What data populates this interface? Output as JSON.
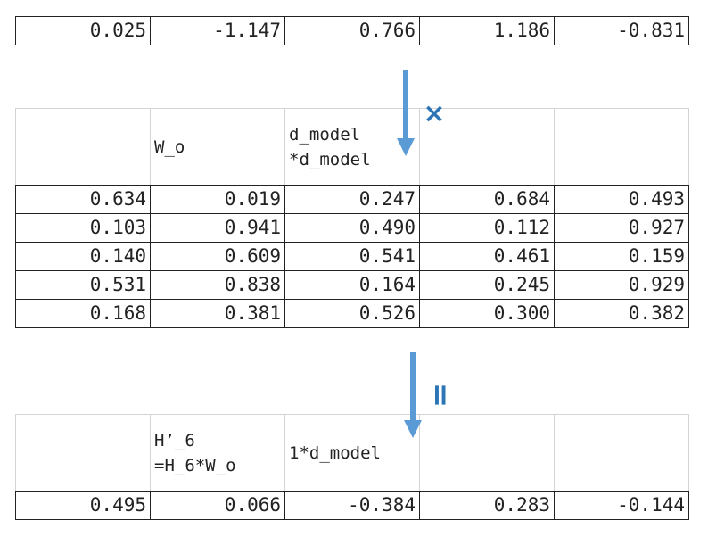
{
  "input_vector": [
    "0.025",
    "-1.147",
    "0.766",
    "1.186",
    "-0.831"
  ],
  "weight_matrix": {
    "name": "W_o",
    "shape": "d_model\n*d_model",
    "rows": [
      [
        "0.634",
        "0.019",
        "0.247",
        "0.684",
        "0.493"
      ],
      [
        "0.103",
        "0.941",
        "0.490",
        "0.112",
        "0.927"
      ],
      [
        "0.140",
        "0.609",
        "0.541",
        "0.461",
        "0.159"
      ],
      [
        "0.531",
        "0.838",
        "0.164",
        "0.245",
        "0.929"
      ],
      [
        "0.168",
        "0.381",
        "0.526",
        "0.300",
        "0.382"
      ]
    ]
  },
  "multiply_symbol": "×",
  "equals_symbol": "=",
  "result": {
    "name": "H’_6\n=H_6*W_o",
    "shape": "1*d_model",
    "values": [
      "0.495",
      "0.066",
      "-0.384",
      "0.283",
      "-0.144"
    ]
  },
  "colors": {
    "arrow": "#5b9bd5",
    "symbol": "#2e75b6"
  }
}
